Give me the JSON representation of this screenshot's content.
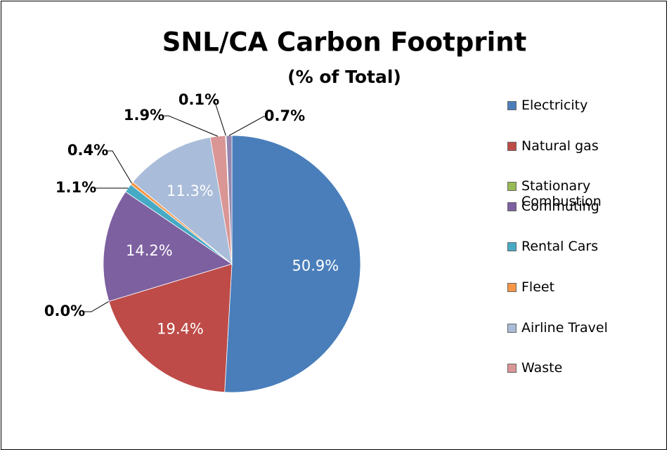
{
  "chart_data": {
    "type": "pie",
    "title": "SNL/CA Carbon Footprint",
    "subtitle": "(% of Total)",
    "categories": [
      "Electricity",
      "Natural gas",
      "Stationary Combustion",
      "Commuting",
      "Rental Cars",
      "Fleet",
      "Airline Travel",
      "Waste",
      null,
      null
    ],
    "values": [
      50.9,
      19.4,
      0.0,
      14.2,
      1.1,
      0.4,
      11.3,
      1.9,
      0.1,
      0.7
    ],
    "value_labels": [
      "50.9%",
      "19.4%",
      "0.0%",
      "14.2%",
      "1.1%",
      "0.4%",
      "11.3%",
      "1.9%",
      "0.1%",
      "0.7%"
    ],
    "colors": [
      "#4a7ebb",
      "#be4b48",
      "#98b954",
      "#7d60a0",
      "#46aac5",
      "#f79646",
      "#a9bcd9",
      "#d99694",
      "#b7c8e3",
      "#9486b0"
    ]
  }
}
